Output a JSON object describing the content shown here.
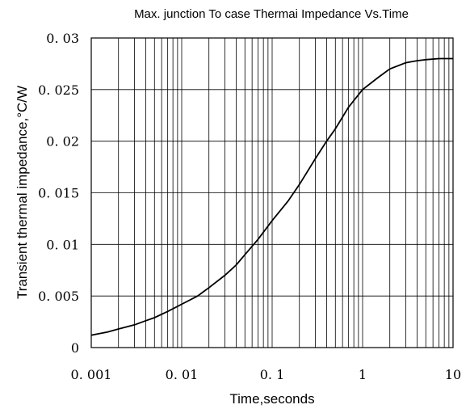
{
  "chart_data": {
    "type": "line",
    "title": "Max. junction To case Thermai Impedance Vs.Time",
    "xlabel": "Time,seconds",
    "ylabel": "Transient thermal impedance,°C/W",
    "x_scale": "log",
    "xlim": [
      0.001,
      10
    ],
    "ylim": [
      0,
      0.03
    ],
    "grid": true,
    "x_ticks": [
      0.001,
      0.01,
      0.1,
      1,
      10
    ],
    "x_tick_labels": [
      "0. 001",
      "0. 01",
      "0. 1",
      "1",
      "10"
    ],
    "y_ticks": [
      0,
      0.005,
      0.01,
      0.015,
      0.02,
      0.025,
      0.03
    ],
    "y_tick_labels": [
      "0",
      "0. 005",
      "0. 01",
      "0. 015",
      "0. 02",
      "0. 025",
      "0. 03"
    ],
    "series": [
      {
        "color": "#000000",
        "x": [
          0.001,
          0.0015,
          0.002,
          0.003,
          0.004,
          0.005,
          0.007,
          0.01,
          0.015,
          0.02,
          0.03,
          0.04,
          0.05,
          0.07,
          0.1,
          0.15,
          0.2,
          0.3,
          0.4,
          0.5,
          0.7,
          1,
          1.5,
          2,
          3,
          4,
          5,
          7,
          10
        ],
        "y": [
          0.0012,
          0.0015,
          0.0018,
          0.0022,
          0.0026,
          0.0029,
          0.0035,
          0.0042,
          0.005,
          0.0058,
          0.007,
          0.008,
          0.009,
          0.0105,
          0.0123,
          0.0142,
          0.0158,
          0.0183,
          0.02,
          0.0212,
          0.0233,
          0.025,
          0.0262,
          0.027,
          0.0276,
          0.0278,
          0.0279,
          0.028,
          0.028
        ]
      }
    ]
  }
}
